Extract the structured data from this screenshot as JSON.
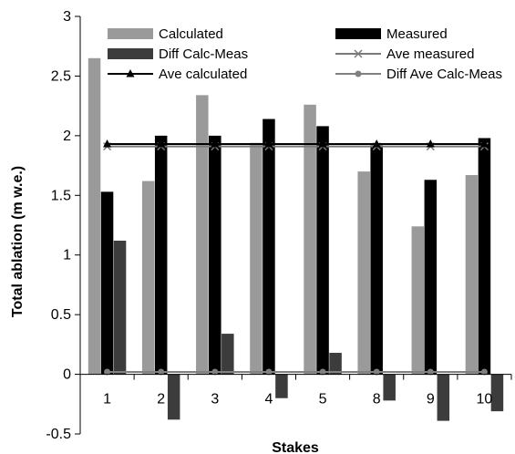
{
  "chart_data": {
    "type": "bar",
    "title": "",
    "xlabel": "Stakes",
    "ylabel": "Total ablation (m w.e.)",
    "ylim": [
      -0.5,
      3
    ],
    "yticks": [
      "-0.5",
      "0",
      "0.5",
      "1",
      "1.5",
      "2",
      "2.5",
      "3"
    ],
    "categories": [
      "1",
      "2",
      "3",
      "4",
      "5",
      "8",
      "9",
      "10"
    ],
    "series": [
      {
        "name": "Calculated",
        "kind": "bar",
        "color": "#9a9a9a",
        "values": [
          2.65,
          1.62,
          2.34,
          1.94,
          2.26,
          1.7,
          1.24,
          1.67
        ]
      },
      {
        "name": "Measured",
        "kind": "bar",
        "color": "#000000",
        "values": [
          1.53,
          2.0,
          2.0,
          2.14,
          2.08,
          1.92,
          1.63,
          1.98
        ]
      },
      {
        "name": "Diff Calc-Meas",
        "kind": "bar",
        "color": "#3c3c3c",
        "values": [
          1.12,
          -0.38,
          0.34,
          -0.2,
          0.18,
          -0.22,
          -0.39,
          -0.31
        ]
      },
      {
        "name": "Ave measured",
        "kind": "line",
        "marker": "x",
        "color": "#7a7a7a",
        "values": [
          1.91,
          1.91,
          1.91,
          1.91,
          1.91,
          1.91,
          1.91,
          1.91
        ]
      },
      {
        "name": "Ave calculated",
        "kind": "line",
        "marker": "triangle",
        "color": "#000000",
        "values": [
          1.93,
          1.93,
          1.93,
          1.93,
          1.93,
          1.93,
          1.93,
          1.93
        ]
      },
      {
        "name": "Diff Ave Calc-Meas",
        "kind": "line",
        "marker": "circle",
        "color": "#808080",
        "values": [
          0.02,
          0.02,
          0.02,
          0.02,
          0.02,
          0.02,
          0.02,
          0.02
        ]
      }
    ],
    "legend_position": "top",
    "grid": false
  }
}
